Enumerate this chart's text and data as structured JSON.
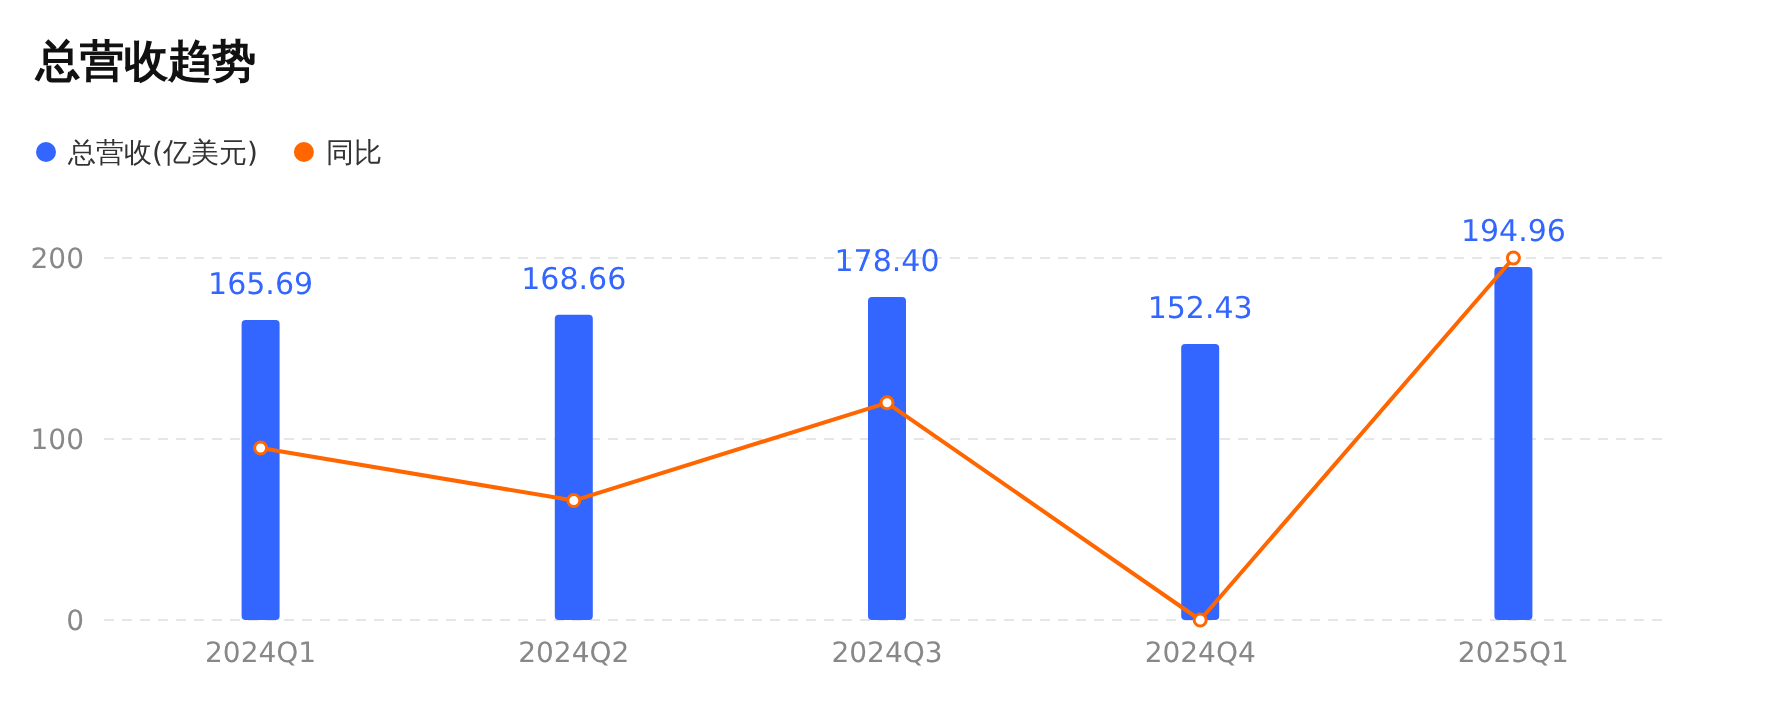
{
  "chart_data": {
    "type": "bar",
    "title": "总营收趋势",
    "categories": [
      "2024Q1",
      "2024Q2",
      "2024Q3",
      "2024Q4",
      "2025Q1"
    ],
    "series": [
      {
        "name": "总营收(亿美元)",
        "color": "#3366ff",
        "values": [
          165.69,
          168.66,
          178.4,
          152.43,
          194.96
        ],
        "value_labels": [
          "165.69",
          "168.66",
          "178.40",
          "152.43",
          "194.96"
        ]
      },
      {
        "name": "同比",
        "type": "line",
        "color": "#ff6600",
        "values": [
          95,
          66,
          120,
          0,
          200
        ],
        "marker": "circle",
        "line_style": "solid"
      }
    ],
    "ylim": [
      0,
      200
    ],
    "yticks": [
      0,
      100,
      200
    ],
    "grid": "y",
    "legend": "top left"
  }
}
